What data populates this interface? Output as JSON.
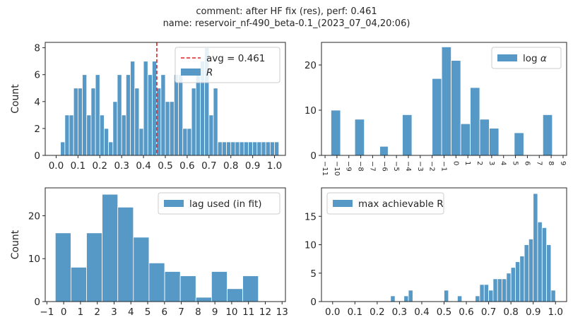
{
  "suptitle": {
    "line1": "comment: after HF fix (res),  perf: 0.461",
    "line2": "name: reservoir_nf-490_beta-0.1_(2023_07_04,20:06)"
  },
  "colors": {
    "bar": "#5799c6",
    "avg_line": "#d62728",
    "spine": "#262626"
  },
  "chart_data": [
    {
      "id": "R",
      "type": "bar",
      "ylabel": "Count",
      "xlim": [
        -0.05,
        1.05
      ],
      "ylim": [
        0,
        8.4
      ],
      "xticks": [
        0.0,
        0.1,
        0.2,
        0.3,
        0.4,
        0.5,
        0.6,
        0.7,
        0.8,
        0.9,
        1.0
      ],
      "xtick_labels": [
        "0.0",
        "0.1",
        "0.2",
        "0.3",
        "0.4",
        "0.5",
        "0.6",
        "0.7",
        "0.8",
        "0.9",
        "1.0"
      ],
      "yticks": [
        0,
        2,
        4,
        6,
        8
      ],
      "ytick_labels": [
        "0",
        "2",
        "4",
        "6",
        "8"
      ],
      "bin_start": 0.02,
      "bin_width": 0.02,
      "values": [
        1,
        3,
        3,
        5,
        5,
        6,
        3,
        5,
        6,
        3,
        2,
        1,
        4,
        6,
        3,
        6,
        7,
        5,
        2,
        7,
        6,
        7,
        5,
        6,
        4,
        4,
        6,
        6,
        2,
        2,
        5,
        6,
        7,
        8,
        3,
        5,
        1,
        1,
        1,
        1,
        1,
        1,
        1,
        1,
        1,
        1,
        1,
        1,
        1,
        1
      ],
      "avg": 0.461,
      "legend": [
        {
          "kind": "line",
          "label": "avg = 0.461"
        },
        {
          "kind": "patch",
          "label": "R"
        }
      ],
      "legend_position": "upper right"
    },
    {
      "id": "log_alpha",
      "type": "bar",
      "ylabel": "",
      "xlim": [
        -11.3,
        9.3
      ],
      "ylim": [
        0,
        25
      ],
      "xticks": [
        -11,
        -10,
        -9,
        -8,
        -7,
        -6,
        -5,
        -4,
        -3,
        -2,
        -1,
        0,
        1,
        2,
        3,
        4,
        5,
        6,
        7,
        8,
        9
      ],
      "xtick_labels": [
        "−11",
        "−10",
        "−9",
        "−8",
        "−7",
        "−6",
        "−5",
        "−4",
        "−3",
        "−2",
        "−1",
        "0",
        "1",
        "2",
        "3",
        "4",
        "5",
        "6",
        "7",
        "8",
        "9"
      ],
      "xtick_rotation": 90,
      "yticks": [
        0,
        10,
        20
      ],
      "ytick_labels": [
        "0",
        "10",
        "20"
      ],
      "bins": [
        {
          "x0": -10.5,
          "x1": -9.7,
          "v": 10
        },
        {
          "x0": -8.5,
          "x1": -7.7,
          "v": 8
        },
        {
          "x0": -6.4,
          "x1": -5.7,
          "v": 2
        },
        {
          "x0": -4.5,
          "x1": -3.7,
          "v": 9
        },
        {
          "x0": -2.0,
          "x1": -1.2,
          "v": 17
        },
        {
          "x0": -1.2,
          "x1": -0.4,
          "v": 24
        },
        {
          "x0": -0.4,
          "x1": 0.4,
          "v": 21
        },
        {
          "x0": 0.4,
          "x1": 1.2,
          "v": 7
        },
        {
          "x0": 1.2,
          "x1": 2.0,
          "v": 15
        },
        {
          "x0": 2.0,
          "x1": 2.8,
          "v": 8
        },
        {
          "x0": 2.8,
          "x1": 3.6,
          "v": 6
        },
        {
          "x0": 4.9,
          "x1": 5.7,
          "v": 5
        },
        {
          "x0": 7.3,
          "x1": 8.1,
          "v": 9
        }
      ],
      "legend": [
        {
          "kind": "patch",
          "label": "log α"
        }
      ],
      "legend_position": "upper right"
    },
    {
      "id": "lag",
      "type": "bar",
      "ylabel": "Count",
      "xlim": [
        -1.1,
        13.2
      ],
      "ylim": [
        0,
        26.5
      ],
      "xticks": [
        -1,
        0,
        1,
        2,
        3,
        4,
        5,
        6,
        7,
        8,
        9,
        10,
        11,
        12,
        13
      ],
      "xtick_labels": [
        "−1",
        "0",
        "1",
        "2",
        "3",
        "4",
        "5",
        "6",
        "7",
        "8",
        "9",
        "10",
        "11",
        "12",
        "13"
      ],
      "yticks": [
        0,
        10,
        20
      ],
      "ytick_labels": [
        "0",
        "10",
        "20"
      ],
      "bin_start": -0.5,
      "bin_width": 0.93,
      "values": [
        16,
        8,
        16,
        25,
        22,
        15,
        9,
        7,
        6,
        1,
        7,
        3,
        6
      ],
      "legend": [
        {
          "kind": "patch",
          "label": "lag used (in fit)"
        }
      ],
      "legend_position": "upper right"
    },
    {
      "id": "max_R",
      "type": "bar",
      "ylabel": "",
      "xlim": [
        -0.05,
        1.05
      ],
      "ylim": [
        0,
        20
      ],
      "xticks": [
        0.0,
        0.1,
        0.2,
        0.3,
        0.4,
        0.5,
        0.6,
        0.7,
        0.8,
        0.9,
        1.0
      ],
      "xtick_labels": [
        "0.0",
        "0.1",
        "0.2",
        "0.3",
        "0.4",
        "0.5",
        "0.6",
        "0.7",
        "0.8",
        "0.9",
        "1.0"
      ],
      "yticks": [
        0,
        5,
        10,
        15
      ],
      "ytick_labels": [
        "0",
        "5",
        "10",
        "15"
      ],
      "bin_start": 0.0,
      "bin_width": 0.02,
      "values": [
        0,
        0,
        0,
        0,
        0,
        0,
        0,
        0,
        0,
        0,
        0,
        0,
        0,
        1,
        0,
        0,
        1,
        2,
        0,
        0,
        0,
        0,
        0,
        0,
        0,
        2,
        0,
        0,
        1,
        0,
        0,
        0,
        1,
        3,
        3,
        2,
        4,
        4,
        4,
        5,
        6,
        7,
        8,
        10,
        11,
        19,
        14,
        13,
        10,
        2
      ],
      "legend": [
        {
          "kind": "patch",
          "label": "max achievable R"
        }
      ],
      "legend_position": "upper left"
    }
  ]
}
